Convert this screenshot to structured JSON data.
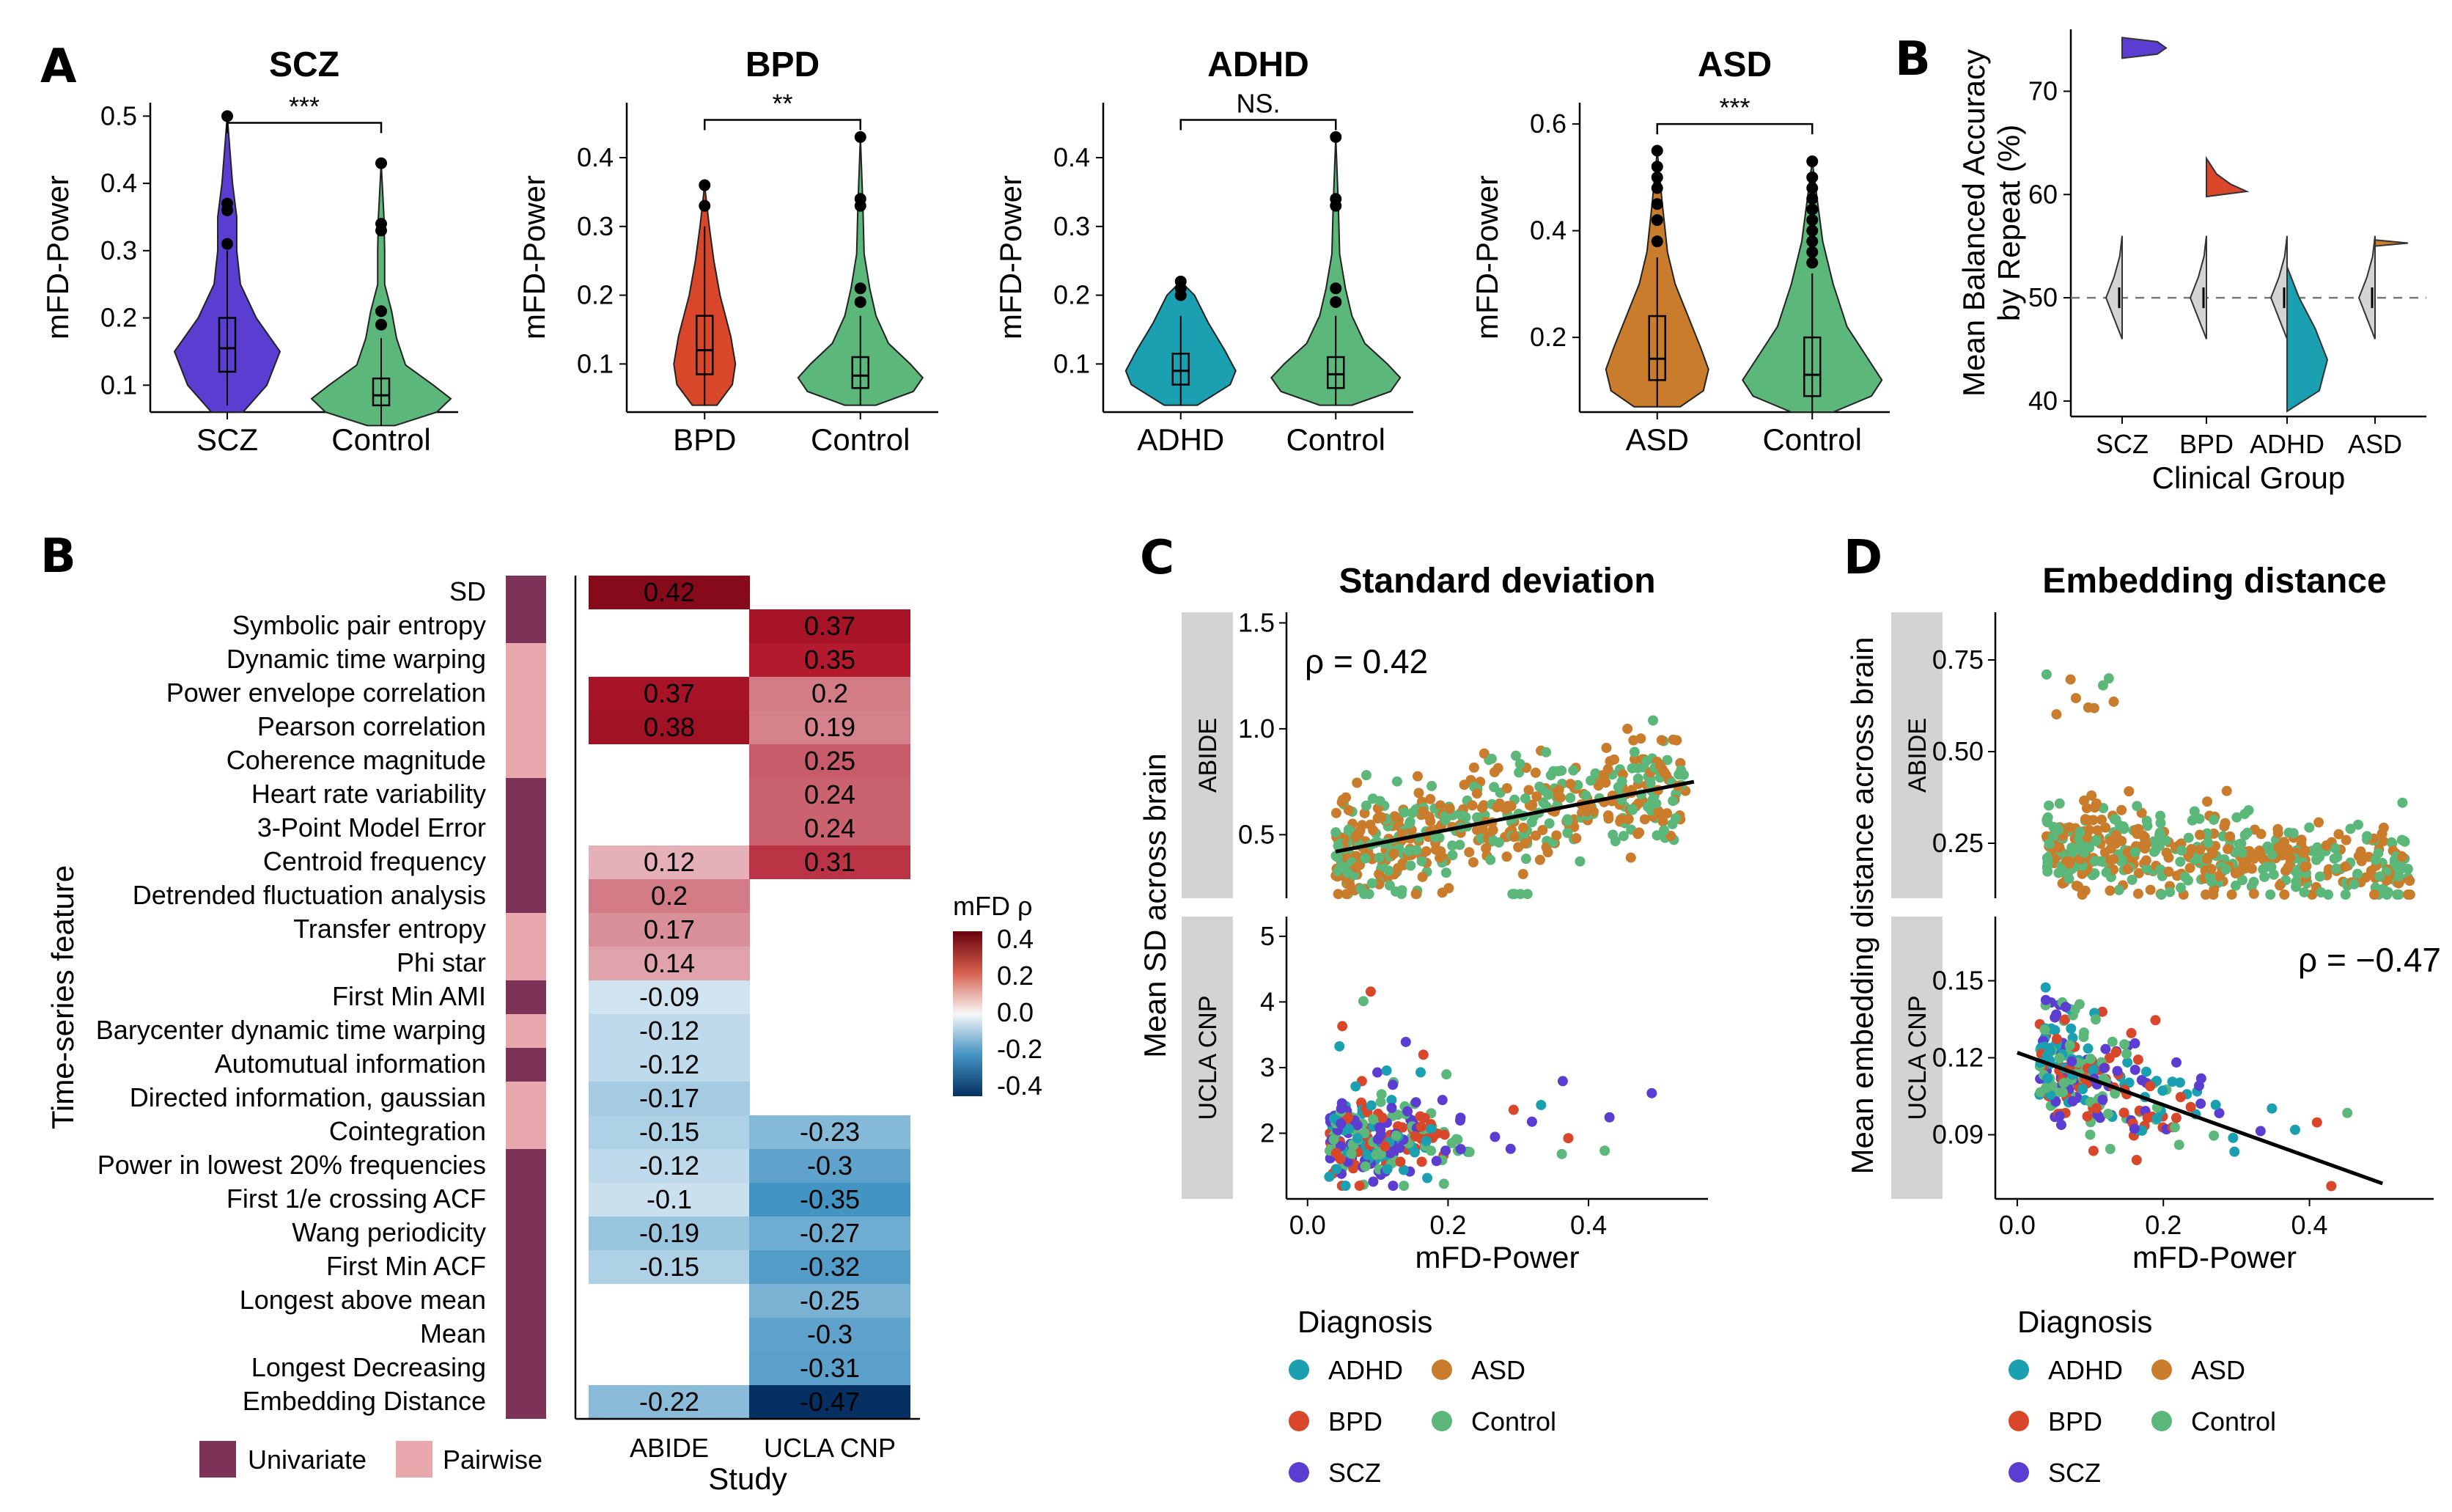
{
  "panel_labels": {
    "a": "A",
    "b_top": "B",
    "b": "B",
    "c": "C",
    "d": "D"
  },
  "violins": [
    {
      "title": "SCZ",
      "groups": [
        "SCZ",
        "Control"
      ],
      "colors": [
        "#5b3dd1",
        "#5cb87a"
      ],
      "sig": "***",
      "ylabel": "mFD-Power",
      "ticks": [
        "0.1",
        "0.2",
        "0.3",
        "0.4",
        "0.5"
      ]
    },
    {
      "title": "BPD",
      "groups": [
        "BPD",
        "Control"
      ],
      "colors": [
        "#d9472b",
        "#5cb87a"
      ],
      "sig": "**",
      "ylabel": "mFD-Power",
      "ticks": [
        "0.1",
        "0.2",
        "0.3",
        "0.4"
      ]
    },
    {
      "title": "ADHD",
      "groups": [
        "ADHD",
        "Control"
      ],
      "colors": [
        "#1aa0b0",
        "#5cb87a"
      ],
      "sig": "NS.",
      "ylabel": "mFD-Power",
      "ticks": [
        "0.1",
        "0.2",
        "0.3",
        "0.4"
      ]
    },
    {
      "title": "ASD",
      "groups": [
        "ASD",
        "Control"
      ],
      "colors": [
        "#c97d2c",
        "#5cb87a"
      ],
      "sig": "***",
      "ylabel": "mFD-Power",
      "ticks": [
        "0.2",
        "0.4",
        "0.6"
      ]
    }
  ],
  "accuracy_panel": {
    "ylabel_1": "Mean Balanced Accuracy",
    "ylabel_2": "by Repeat (%)",
    "xlabel": "Clinical Group",
    "groups": [
      "SCZ",
      "BPD",
      "ADHD",
      "ASD"
    ],
    "ticks": [
      "40",
      "50",
      "60",
      "70"
    ]
  },
  "chart_data": [
    {
      "type": "heatmap",
      "legend_title": "mFD ρ",
      "legend_ticks": [
        "0.4",
        "0.2",
        "0.0",
        "-0.2",
        "-0.4"
      ],
      "xlabel": "Study",
      "ylabel": "Time-series feature",
      "columns": [
        "ABIDE",
        "UCLA CNP"
      ],
      "category_legend": [
        "Univariate",
        "Pairwise"
      ],
      "category_colors": {
        "Univariate": "#7d3358",
        "Pairwise": "#e8a8ae"
      },
      "rows": [
        {
          "feature": "SD",
          "category": "Univariate",
          "abide": 0.42,
          "ucla": null
        },
        {
          "feature": "Symbolic pair entropy",
          "category": "Univariate",
          "abide": null,
          "ucla": 0.37
        },
        {
          "feature": "Dynamic time warping",
          "category": "Pairwise",
          "abide": null,
          "ucla": 0.35
        },
        {
          "feature": "Power envelope correlation",
          "category": "Pairwise",
          "abide": 0.37,
          "ucla": 0.2
        },
        {
          "feature": "Pearson correlation",
          "category": "Pairwise",
          "abide": 0.38,
          "ucla": 0.19
        },
        {
          "feature": "Coherence magnitude",
          "category": "Pairwise",
          "abide": null,
          "ucla": 0.25
        },
        {
          "feature": "Heart rate variability",
          "category": "Univariate",
          "abide": null,
          "ucla": 0.24
        },
        {
          "feature": "3-Point Model Error",
          "category": "Univariate",
          "abide": null,
          "ucla": 0.24
        },
        {
          "feature": "Centroid frequency",
          "category": "Univariate",
          "abide": 0.12,
          "ucla": 0.31
        },
        {
          "feature": "Detrended fluctuation analysis",
          "category": "Univariate",
          "abide": 0.2,
          "ucla": null
        },
        {
          "feature": "Transfer entropy",
          "category": "Pairwise",
          "abide": 0.17,
          "ucla": null
        },
        {
          "feature": "Phi star",
          "category": "Pairwise",
          "abide": 0.14,
          "ucla": null
        },
        {
          "feature": "First Min AMI",
          "category": "Univariate",
          "abide": -0.09,
          "ucla": null
        },
        {
          "feature": "Barycenter dynamic time warping",
          "category": "Pairwise",
          "abide": -0.12,
          "ucla": null
        },
        {
          "feature": "Automutual information",
          "category": "Univariate",
          "abide": -0.12,
          "ucla": null
        },
        {
          "feature": "Directed information, gaussian",
          "category": "Pairwise",
          "abide": -0.17,
          "ucla": null
        },
        {
          "feature": "Cointegration",
          "category": "Pairwise",
          "abide": -0.15,
          "ucla": -0.23
        },
        {
          "feature": "Power in lowest 20% frequencies",
          "category": "Univariate",
          "abide": -0.12,
          "ucla": -0.3
        },
        {
          "feature": "First 1/e crossing ACF",
          "category": "Univariate",
          "abide": -0.1,
          "ucla": -0.35
        },
        {
          "feature": "Wang periodicity",
          "category": "Univariate",
          "abide": -0.19,
          "ucla": -0.27
        },
        {
          "feature": "First Min ACF",
          "category": "Univariate",
          "abide": -0.15,
          "ucla": -0.32
        },
        {
          "feature": "Longest above mean",
          "category": "Univariate",
          "abide": null,
          "ucla": -0.25
        },
        {
          "feature": "Mean",
          "category": "Univariate",
          "abide": null,
          "ucla": -0.3
        },
        {
          "feature": "Longest Decreasing",
          "category": "Univariate",
          "abide": null,
          "ucla": -0.31
        },
        {
          "feature": "Embedding Distance",
          "category": "Univariate",
          "abide": -0.22,
          "ucla": -0.47
        }
      ]
    },
    {
      "type": "scatter",
      "title": "Standard deviation",
      "xlabel": "mFD-Power",
      "ylabel": "Mean SD across brain",
      "facets": [
        {
          "strip": "ABIDE",
          "rho_label": "ρ = 0.42",
          "yticks": [
            "0.5",
            "1.0",
            "1.5"
          ],
          "ylim": [
            0.2,
            1.55
          ],
          "trend": [
            [
              0.04,
              0.42
            ],
            [
              0.55,
              0.75
            ]
          ]
        },
        {
          "strip": "UCLA CNP",
          "yticks": [
            "2",
            "3",
            "4",
            "5"
          ],
          "ylim": [
            1.0,
            5.3
          ]
        }
      ],
      "xticks": [
        "0.0",
        "0.2",
        "0.4"
      ],
      "xlim": [
        -0.03,
        0.57
      ]
    },
    {
      "type": "scatter",
      "title": "Embedding distance",
      "xlabel": "mFD-Power",
      "ylabel": "Mean embedding distance across brain",
      "facets": [
        {
          "strip": "ABIDE",
          "yticks": [
            "0.25",
            "0.50",
            "0.75"
          ],
          "ylim": [
            0.1,
            0.88
          ]
        },
        {
          "strip": "UCLA CNP",
          "rho_label": "ρ = −0.47",
          "yticks": [
            "0.09",
            "0.12",
            "0.15"
          ],
          "ylim": [
            0.065,
            0.175
          ],
          "trend": [
            [
              0.0,
              0.122
            ],
            [
              0.5,
              0.071
            ]
          ]
        }
      ],
      "xticks": [
        "0.0",
        "0.2",
        "0.4"
      ],
      "xlim": [
        -0.03,
        0.57
      ]
    }
  ],
  "diagnosis_legend": {
    "title": "Diagnosis",
    "items": [
      {
        "label": "ADHD",
        "color": "#1aa0b0"
      },
      {
        "label": "ASD",
        "color": "#c97d2c"
      },
      {
        "label": "BPD",
        "color": "#d9472b"
      },
      {
        "label": "Control",
        "color": "#5cb87a"
      },
      {
        "label": "SCZ",
        "color": "#5b3dd1"
      }
    ]
  }
}
